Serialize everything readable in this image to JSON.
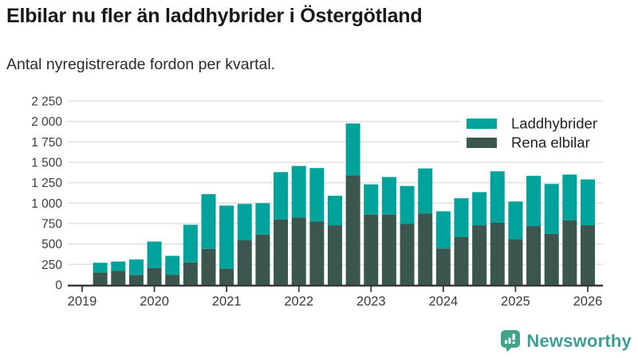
{
  "title": "Elbilar nu fler än laddhybrider i Östergötland",
  "subtitle": "Antal nyregistrerade fordon per kvartal.",
  "footer": {
    "brand": "Newsworthy",
    "logo_icon": "newsworthy-speech-bubble-bar-chart-icon"
  },
  "colors": {
    "laddhybrider": "#00a39b",
    "rena_elbilar": "#3a564e",
    "gridline": "#e2e2e2",
    "axis_line": "#383838",
    "tick_label": "#3c3c3c",
    "legend_text": "#222222",
    "logo_green": "#41a38b",
    "logo_text": "#3f9e94"
  },
  "chart_data": {
    "type": "bar",
    "stacked": true,
    "title": "Elbilar nu fler än laddhybrider i Östergötland",
    "subtitle": "Antal nyregistrerade fordon per kvartal.",
    "xlabel": "",
    "ylabel": "",
    "ylim": [
      0,
      2250
    ],
    "ytick_step": 250,
    "ytick_labels": [
      "0",
      "250",
      "500",
      "750",
      "1 000",
      "1 250",
      "1 500",
      "1 750",
      "2 000",
      "2 250"
    ],
    "xtick_labels": [
      "2019",
      "2020",
      "2021",
      "2022",
      "2023",
      "2024",
      "2025",
      "2026"
    ],
    "grid": true,
    "legend_position": "top-right",
    "categories": [
      "2019-Q2",
      "2019-Q3",
      "2019-Q4",
      "2020-Q1",
      "2020-Q2",
      "2020-Q3",
      "2020-Q4",
      "2021-Q1",
      "2021-Q2",
      "2021-Q3",
      "2021-Q4",
      "2022-Q1",
      "2022-Q2",
      "2022-Q3",
      "2022-Q4",
      "2023-Q1",
      "2023-Q2",
      "2023-Q3",
      "2023-Q4",
      "2024-Q1",
      "2024-Q2",
      "2024-Q3",
      "2024-Q4",
      "2025-Q1",
      "2025-Q2",
      "2025-Q3",
      "2025-Q4",
      "2026-Q1"
    ],
    "series": [
      {
        "name": "Laddhybrider",
        "color": "#00a39b",
        "stack_order": "top",
        "values": [
          120,
          115,
          190,
          325,
          230,
          460,
          670,
          775,
          445,
          385,
          580,
          630,
          655,
          360,
          635,
          370,
          460,
          465,
          550,
          455,
          475,
          405,
          630,
          465,
          615,
          610,
          560,
          560
        ]
      },
      {
        "name": "Rena elbilar",
        "color": "#3a564e",
        "stack_order": "bottom",
        "values": [
          150,
          170,
          120,
          205,
          125,
          275,
          440,
          195,
          545,
          615,
          800,
          825,
          775,
          730,
          1340,
          860,
          860,
          745,
          875,
          445,
          585,
          730,
          760,
          555,
          720,
          625,
          790,
          730
        ]
      }
    ]
  }
}
